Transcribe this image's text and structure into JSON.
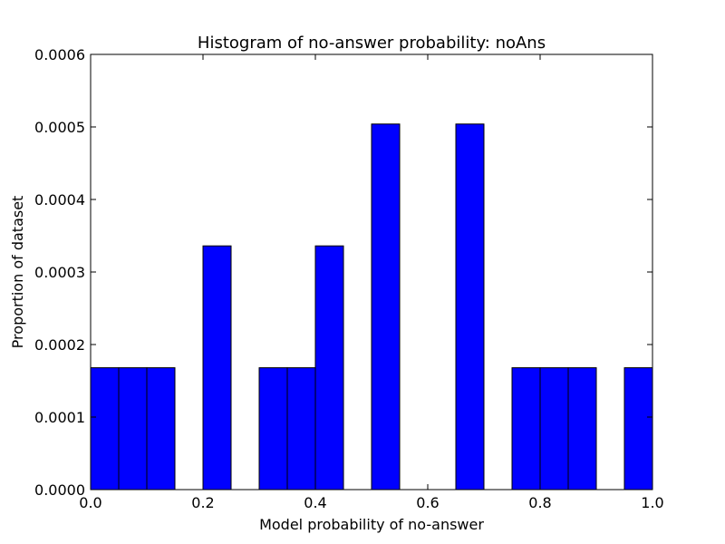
{
  "chart_data": {
    "type": "bar",
    "title": "Histogram of no-answer probability: noAns",
    "xlabel": "Model probability of no-answer",
    "ylabel": "Proportion of dataset",
    "xlim": [
      0.0,
      1.0
    ],
    "ylim": [
      0.0,
      0.0006
    ],
    "xticks": [
      "0.0",
      "0.2",
      "0.4",
      "0.6",
      "0.8",
      "1.0"
    ],
    "yticks": [
      "0.0000",
      "0.0001",
      "0.0002",
      "0.0003",
      "0.0004",
      "0.0005",
      "0.0006"
    ],
    "bin_width": 0.05,
    "bin_starts": [
      0.0,
      0.05,
      0.1,
      0.15,
      0.2,
      0.25,
      0.3,
      0.35,
      0.4,
      0.45,
      0.5,
      0.55,
      0.6,
      0.65,
      0.7,
      0.75,
      0.8,
      0.85,
      0.9,
      0.95
    ],
    "values": [
      0.000168,
      0.000168,
      0.000168,
      0,
      0.000336,
      0,
      0.000168,
      0.000168,
      0.000336,
      0,
      0.000504,
      0,
      0,
      0.000504,
      0,
      0.000168,
      0.000168,
      0.000168,
      0,
      0.000168
    ],
    "grid": false,
    "colors": {
      "bar": "#0000ff",
      "edge": "#000000"
    }
  }
}
